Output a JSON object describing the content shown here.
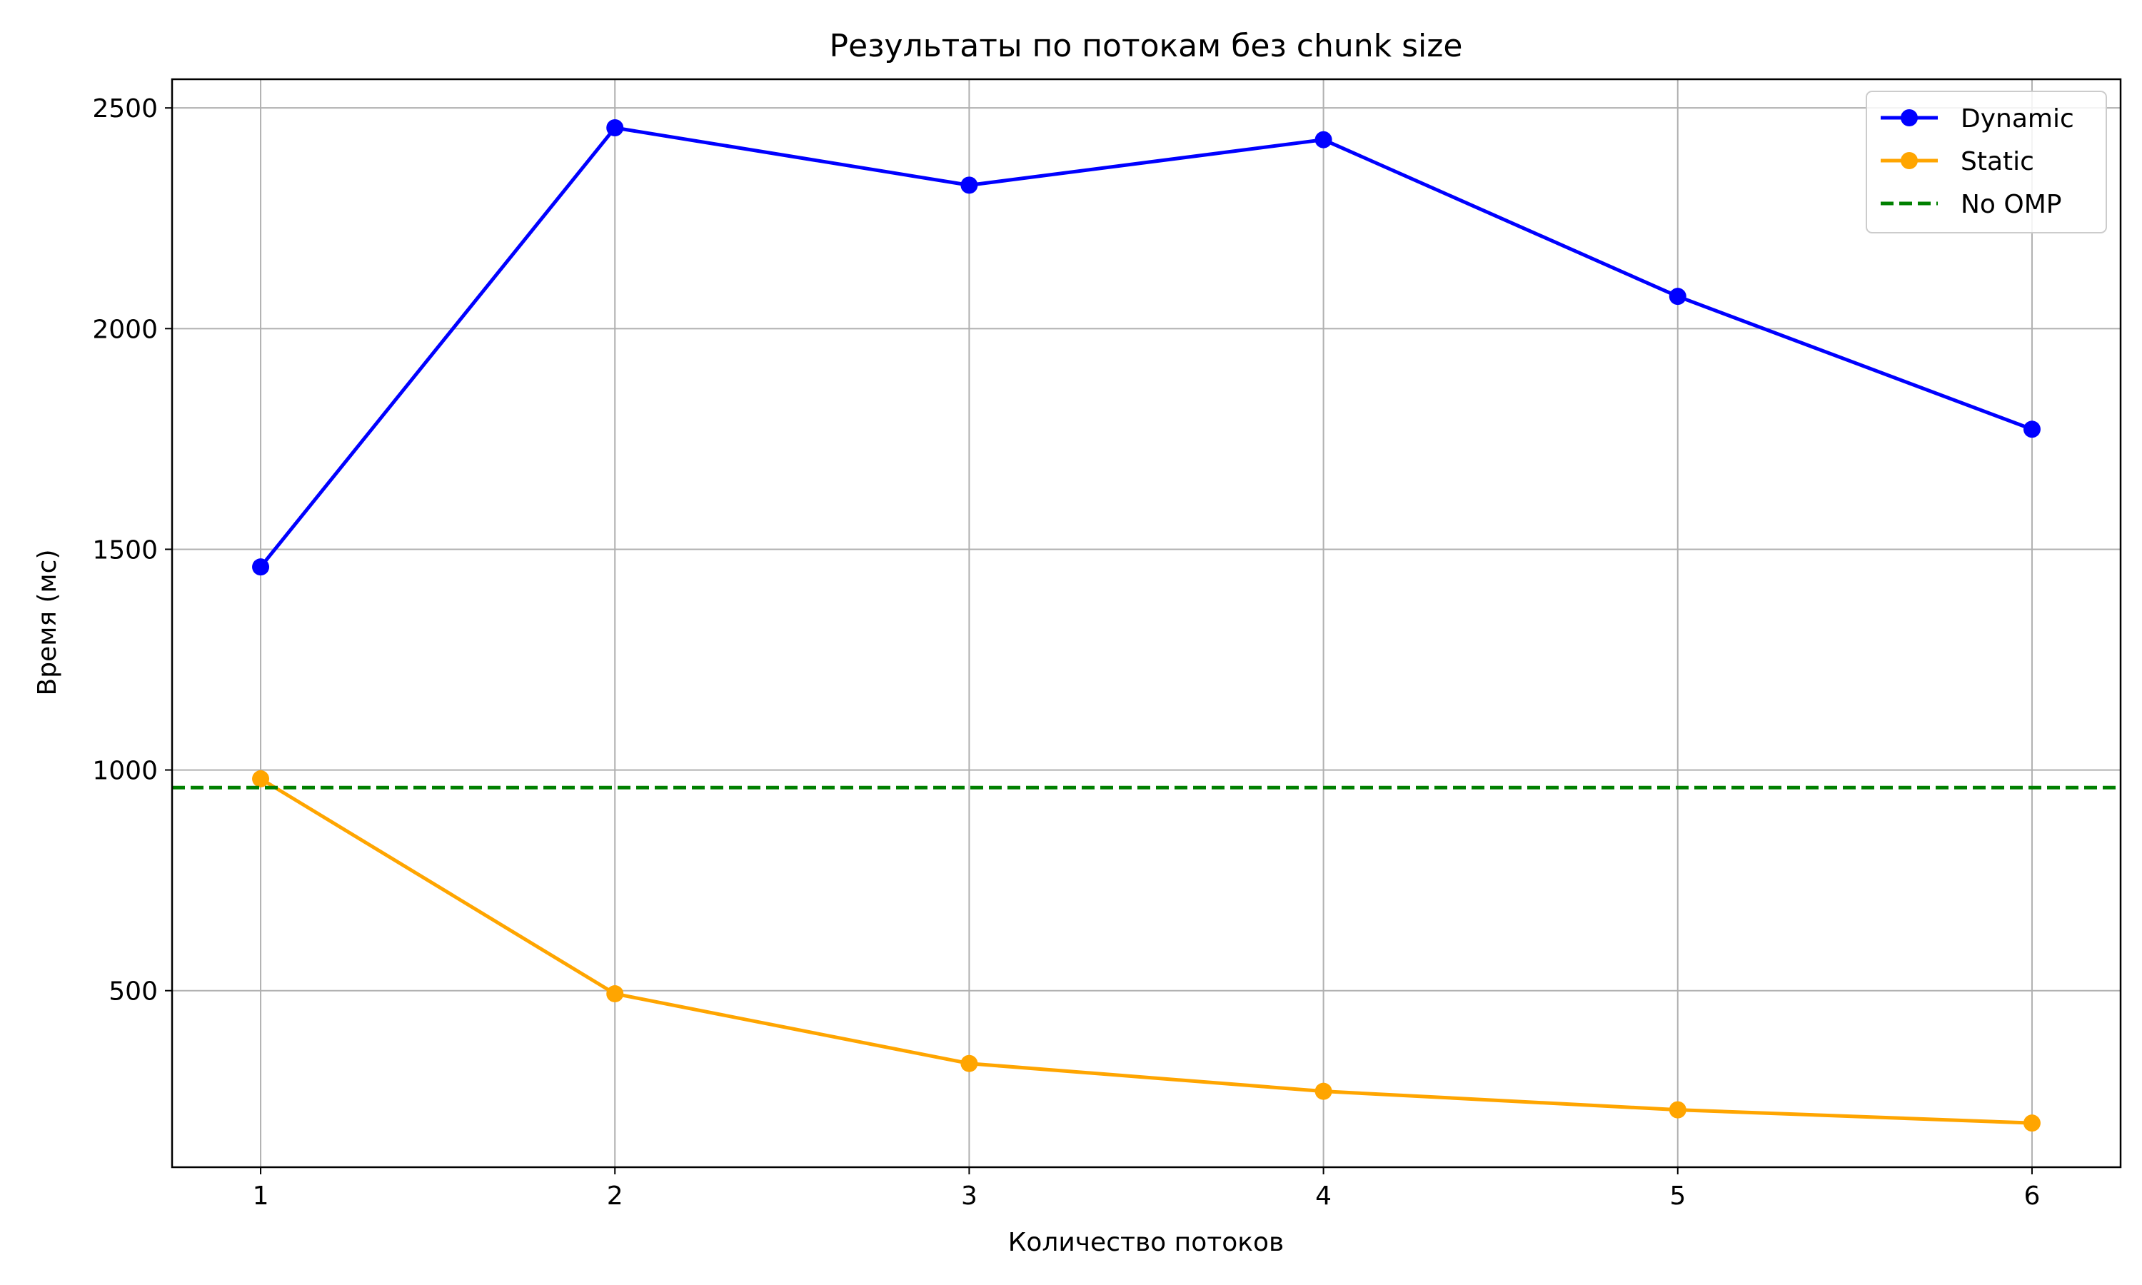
{
  "chart_data": {
    "type": "line",
    "title": "Результаты по потокам без chunk size",
    "xlabel": "Количество потоков",
    "ylabel": "Время (мс)",
    "x": [
      1,
      2,
      3,
      4,
      5,
      6
    ],
    "xticks": [
      "1",
      "2",
      "3",
      "4",
      "5",
      "6"
    ],
    "yticks": [
      500,
      1000,
      1500,
      2000,
      2500
    ],
    "xlim": [
      0.75,
      6.25
    ],
    "ylim": [
      100,
      2565
    ],
    "grid": true,
    "legend_position": "top-right",
    "series": [
      {
        "name": "Dynamic",
        "color": "#0000ff",
        "style": "solid",
        "marker": "circle",
        "values": [
          1460,
          2455,
          2325,
          2428,
          2073,
          1772
        ]
      },
      {
        "name": "Static",
        "color": "#ffa500",
        "style": "solid",
        "marker": "circle",
        "values": [
          980,
          493,
          335,
          272,
          230,
          200
        ]
      },
      {
        "name": "No OMP",
        "color": "#008000",
        "style": "dashed",
        "marker": "none",
        "constant": 960
      }
    ]
  }
}
